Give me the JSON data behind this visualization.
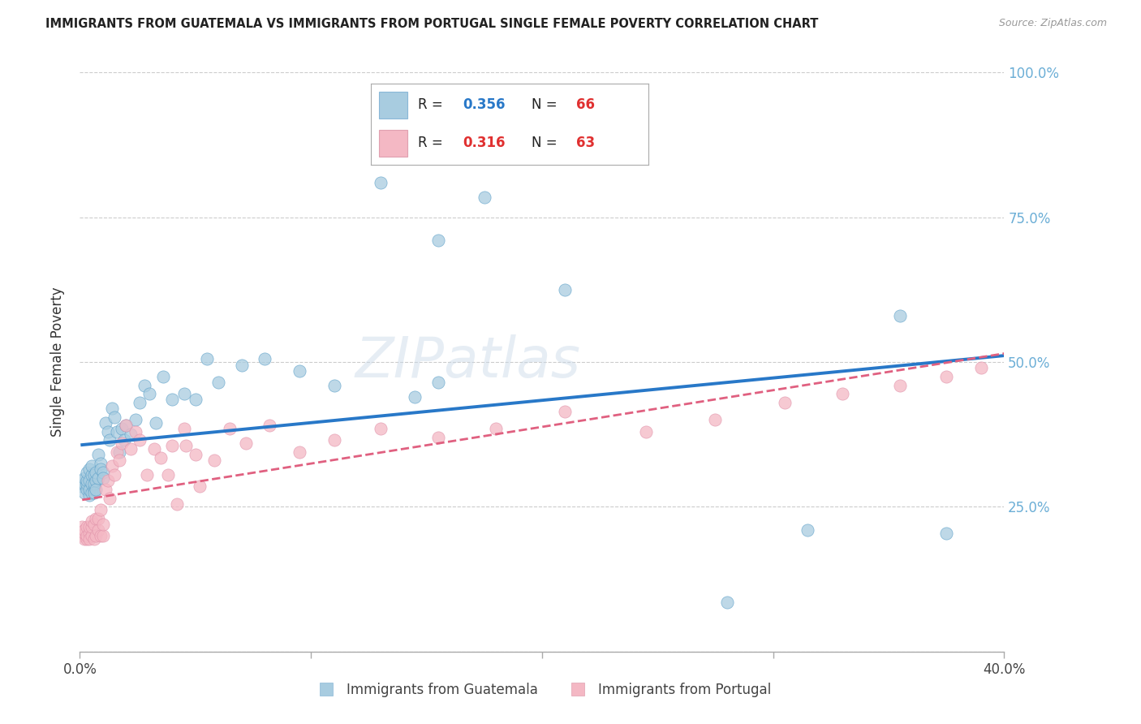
{
  "title": "IMMIGRANTS FROM GUATEMALA VS IMMIGRANTS FROM PORTUGAL SINGLE FEMALE POVERTY CORRELATION CHART",
  "source": "Source: ZipAtlas.com",
  "ylabel": "Single Female Poverty",
  "xlim": [
    0.0,
    0.4
  ],
  "ylim": [
    0.0,
    1.0
  ],
  "xticks": [
    0.0,
    0.1,
    0.2,
    0.3,
    0.4
  ],
  "yticks_right": [
    0.25,
    0.5,
    0.75,
    1.0
  ],
  "ytick_labels_right": [
    "25.0%",
    "50.0%",
    "75.0%",
    "100.0%"
  ],
  "xtick_labels": [
    "0.0%",
    "",
    "",
    "",
    "40.0%"
  ],
  "guatemala_R": 0.356,
  "guatemala_N": 66,
  "portugal_R": 0.316,
  "portugal_N": 63,
  "blue_color": "#a8cce0",
  "pink_color": "#f4b8c4",
  "blue_line_color": "#2878c8",
  "pink_line_color": "#e06080",
  "axis_color": "#6baed6",
  "title_color": "#222222",
  "watermark": "ZIPatlas",
  "guatemala_x": [
    0.001,
    0.001,
    0.002,
    0.002,
    0.002,
    0.003,
    0.003,
    0.003,
    0.003,
    0.004,
    0.004,
    0.004,
    0.004,
    0.005,
    0.005,
    0.005,
    0.005,
    0.006,
    0.006,
    0.006,
    0.006,
    0.007,
    0.007,
    0.007,
    0.008,
    0.008,
    0.009,
    0.009,
    0.01,
    0.01,
    0.011,
    0.012,
    0.013,
    0.014,
    0.015,
    0.016,
    0.017,
    0.018,
    0.019,
    0.02,
    0.022,
    0.024,
    0.026,
    0.028,
    0.03,
    0.033,
    0.036,
    0.04,
    0.045,
    0.05,
    0.055,
    0.06,
    0.07,
    0.08,
    0.095,
    0.11,
    0.13,
    0.155,
    0.175,
    0.21,
    0.145,
    0.155,
    0.28,
    0.315,
    0.355,
    0.375
  ],
  "guatemala_y": [
    0.295,
    0.285,
    0.275,
    0.29,
    0.3,
    0.28,
    0.29,
    0.295,
    0.31,
    0.27,
    0.28,
    0.295,
    0.315,
    0.275,
    0.29,
    0.305,
    0.32,
    0.28,
    0.29,
    0.305,
    0.275,
    0.295,
    0.28,
    0.31,
    0.3,
    0.34,
    0.325,
    0.315,
    0.31,
    0.3,
    0.395,
    0.38,
    0.365,
    0.42,
    0.405,
    0.38,
    0.345,
    0.385,
    0.365,
    0.39,
    0.375,
    0.4,
    0.43,
    0.46,
    0.445,
    0.395,
    0.475,
    0.435,
    0.445,
    0.435,
    0.505,
    0.465,
    0.495,
    0.505,
    0.485,
    0.46,
    0.81,
    0.71,
    0.785,
    0.625,
    0.44,
    0.465,
    0.085,
    0.21,
    0.58,
    0.205
  ],
  "portugal_x": [
    0.001,
    0.001,
    0.002,
    0.002,
    0.002,
    0.003,
    0.003,
    0.003,
    0.004,
    0.004,
    0.004,
    0.005,
    0.005,
    0.005,
    0.006,
    0.006,
    0.007,
    0.007,
    0.008,
    0.008,
    0.009,
    0.009,
    0.01,
    0.01,
    0.011,
    0.012,
    0.013,
    0.014,
    0.015,
    0.016,
    0.017,
    0.018,
    0.02,
    0.022,
    0.024,
    0.026,
    0.029,
    0.032,
    0.035,
    0.038,
    0.042,
    0.046,
    0.052,
    0.058,
    0.065,
    0.072,
    0.082,
    0.095,
    0.11,
    0.13,
    0.155,
    0.18,
    0.21,
    0.245,
    0.275,
    0.305,
    0.33,
    0.355,
    0.375,
    0.39,
    0.04,
    0.045,
    0.05
  ],
  "portugal_y": [
    0.215,
    0.2,
    0.195,
    0.205,
    0.21,
    0.195,
    0.2,
    0.215,
    0.205,
    0.215,
    0.195,
    0.2,
    0.215,
    0.225,
    0.195,
    0.22,
    0.2,
    0.23,
    0.21,
    0.23,
    0.245,
    0.2,
    0.2,
    0.22,
    0.28,
    0.295,
    0.265,
    0.32,
    0.305,
    0.345,
    0.33,
    0.36,
    0.39,
    0.35,
    0.38,
    0.365,
    0.305,
    0.35,
    0.335,
    0.305,
    0.255,
    0.355,
    0.285,
    0.33,
    0.385,
    0.36,
    0.39,
    0.345,
    0.365,
    0.385,
    0.37,
    0.385,
    0.415,
    0.38,
    0.4,
    0.43,
    0.445,
    0.46,
    0.475,
    0.49,
    0.355,
    0.385,
    0.34
  ]
}
